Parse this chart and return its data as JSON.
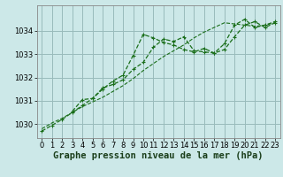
{
  "bg_color": "#cce8e8",
  "grid_color": "#99bbbb",
  "line_color": "#1a6e1a",
  "xlabel": "Graphe pression niveau de la mer (hPa)",
  "xlabel_fontsize": 7.5,
  "tick_fontsize": 6,
  "xlim": [
    -0.5,
    23.5
  ],
  "ylim": [
    1029.4,
    1035.1
  ],
  "yticks": [
    1030,
    1031,
    1032,
    1033,
    1034
  ],
  "xticks": [
    0,
    1,
    2,
    3,
    4,
    5,
    6,
    7,
    8,
    9,
    10,
    11,
    12,
    13,
    14,
    15,
    16,
    17,
    18,
    19,
    20,
    21,
    22,
    23
  ],
  "series1_x": [
    0,
    1,
    2,
    3,
    4,
    5,
    6,
    7,
    8,
    9,
    10,
    11,
    12,
    13,
    14,
    15,
    16,
    17,
    18,
    19,
    20,
    21,
    22,
    23
  ],
  "series1_y": [
    1029.8,
    1030.05,
    1030.25,
    1030.5,
    1030.75,
    1030.95,
    1031.15,
    1031.4,
    1031.65,
    1031.95,
    1032.3,
    1032.6,
    1032.9,
    1033.15,
    1033.4,
    1033.7,
    1033.95,
    1034.15,
    1034.35,
    1034.3,
    1034.25,
    1034.2,
    1034.25,
    1034.35
  ],
  "series2_x": [
    0,
    1,
    2,
    3,
    4,
    5,
    6,
    7,
    8,
    9,
    10,
    11,
    12,
    13,
    14,
    15,
    16,
    17,
    18,
    19,
    20,
    21,
    22,
    23
  ],
  "series2_y": [
    1029.7,
    1029.95,
    1030.2,
    1030.5,
    1030.8,
    1031.1,
    1031.5,
    1031.85,
    1032.1,
    1032.95,
    1033.85,
    1033.7,
    1033.5,
    1033.4,
    1033.2,
    1033.1,
    1033.25,
    1033.05,
    1033.45,
    1034.25,
    1034.5,
    1034.15,
    1034.25,
    1034.4
  ],
  "series3_x": [
    3,
    4,
    5,
    6,
    7,
    8,
    9,
    10,
    11,
    12,
    13,
    14,
    15,
    16,
    17,
    18,
    19,
    20,
    21,
    22,
    23
  ],
  "series3_y": [
    1030.55,
    1031.05,
    1031.1,
    1031.55,
    1031.7,
    1031.9,
    1032.35,
    1032.65,
    1033.3,
    1033.65,
    1033.55,
    1033.75,
    1033.15,
    1033.1,
    1033.05,
    1033.2,
    1033.75,
    1034.25,
    1034.4,
    1034.15,
    1034.35
  ]
}
